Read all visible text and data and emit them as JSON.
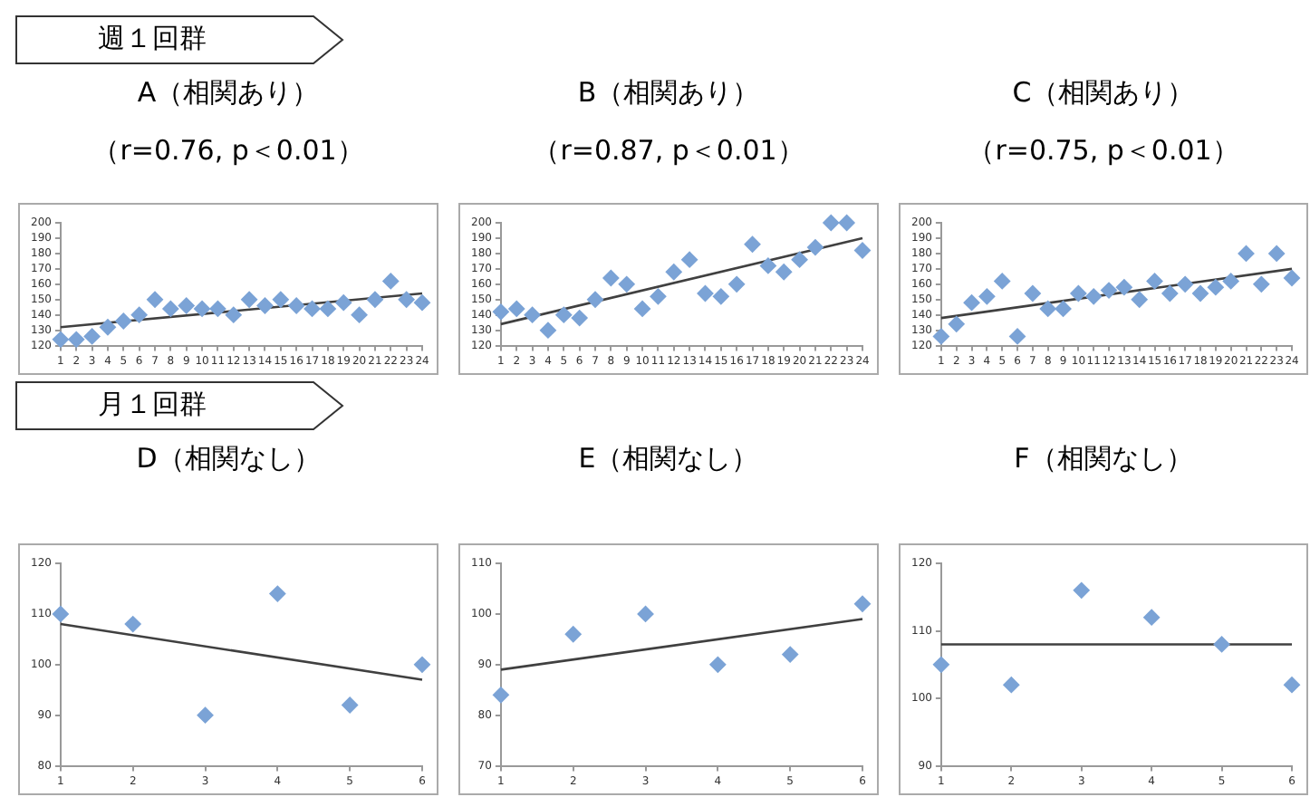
{
  "chart_data": [
    {
      "type": "scatter",
      "title": "A（相関あり）",
      "subtitle": "（r=0.76, p＜0.01）",
      "annotations": [
        "週１回群"
      ],
      "x": [
        1,
        2,
        3,
        4,
        5,
        6,
        7,
        8,
        9,
        10,
        11,
        12,
        13,
        14,
        15,
        16,
        17,
        18,
        19,
        20,
        21,
        22,
        23,
        24
      ],
      "series": [
        {
          "color": "#7ba3d6",
          "marker": "diamond",
          "values": [
            124,
            124,
            126,
            132,
            136,
            140,
            150,
            144,
            146,
            144,
            144,
            140,
            150,
            146,
            150,
            146,
            144,
            144,
            148,
            140,
            150,
            162,
            150,
            148
          ]
        },
        {
          "type": "line",
          "color": "#404040",
          "marker": "none",
          "x": [
            1,
            24
          ],
          "values": [
            132,
            154
          ]
        }
      ],
      "xlim": [
        1,
        24
      ],
      "xticks": [
        1,
        2,
        3,
        4,
        5,
        6,
        7,
        8,
        9,
        10,
        11,
        12,
        13,
        14,
        15,
        16,
        17,
        18,
        19,
        20,
        21,
        22,
        23,
        24
      ],
      "ylim": [
        120,
        200
      ],
      "yticks": [
        120,
        130,
        140,
        150,
        160,
        170,
        180,
        190,
        200
      ]
    },
    {
      "type": "scatter",
      "title": "B（相関あり）",
      "subtitle": "（r=0.87, p＜0.01）",
      "x": [
        1,
        2,
        3,
        4,
        5,
        6,
        7,
        8,
        9,
        10,
        11,
        12,
        13,
        14,
        15,
        16,
        17,
        18,
        19,
        20,
        21,
        22,
        23,
        24
      ],
      "series": [
        {
          "color": "#7ba3d6",
          "marker": "diamond",
          "values": [
            142,
            144,
            140,
            130,
            140,
            138,
            150,
            164,
            160,
            144,
            152,
            168,
            176,
            154,
            152,
            160,
            186,
            172,
            168,
            176,
            184,
            200,
            200,
            182
          ]
        },
        {
          "type": "line",
          "color": "#404040",
          "marker": "none",
          "x": [
            1,
            24
          ],
          "values": [
            134,
            190
          ]
        }
      ],
      "xlim": [
        1,
        24
      ],
      "xticks": [
        1,
        2,
        3,
        4,
        5,
        6,
        7,
        8,
        9,
        10,
        11,
        12,
        13,
        14,
        15,
        16,
        17,
        18,
        19,
        20,
        21,
        22,
        23,
        24
      ],
      "ylim": [
        120,
        200
      ],
      "yticks": [
        120,
        130,
        140,
        150,
        160,
        170,
        180,
        190,
        200
      ]
    },
    {
      "type": "scatter",
      "title": "C（相関あり）",
      "subtitle": "（r=0.75, p＜0.01）",
      "x": [
        1,
        2,
        3,
        4,
        5,
        6,
        7,
        8,
        9,
        10,
        11,
        12,
        13,
        14,
        15,
        16,
        17,
        18,
        19,
        20,
        21,
        22,
        23,
        24
      ],
      "series": [
        {
          "color": "#7ba3d6",
          "marker": "diamond",
          "values": [
            126,
            134,
            148,
            152,
            162,
            126,
            154,
            144,
            144,
            154,
            152,
            156,
            158,
            150,
            162,
            154,
            160,
            154,
            158,
            162,
            180,
            160,
            180,
            164
          ]
        },
        {
          "type": "line",
          "color": "#404040",
          "marker": "none",
          "x": [
            1,
            24
          ],
          "values": [
            138,
            170
          ]
        }
      ],
      "xlim": [
        1,
        24
      ],
      "xticks": [
        1,
        2,
        3,
        4,
        5,
        6,
        7,
        8,
        9,
        10,
        11,
        12,
        13,
        14,
        15,
        16,
        17,
        18,
        19,
        20,
        21,
        22,
        23,
        24
      ],
      "ylim": [
        120,
        200
      ],
      "yticks": [
        120,
        130,
        140,
        150,
        160,
        170,
        180,
        190,
        200
      ]
    },
    {
      "type": "scatter",
      "title": "D（相関なし）",
      "annotations": [
        "月１回群"
      ],
      "x": [
        1,
        2,
        3,
        4,
        5,
        6
      ],
      "series": [
        {
          "color": "#7ba3d6",
          "marker": "diamond",
          "values": [
            110,
            108,
            90,
            114,
            92,
            100
          ]
        },
        {
          "type": "line",
          "color": "#404040",
          "marker": "none",
          "x": [
            1,
            6
          ],
          "values": [
            108,
            97
          ]
        }
      ],
      "xlim": [
        1,
        6
      ],
      "xticks": [
        1,
        2,
        3,
        4,
        5,
        6
      ],
      "ylim": [
        80,
        120
      ],
      "yticks": [
        80,
        90,
        100,
        110,
        120
      ]
    },
    {
      "type": "scatter",
      "title": "E（相関なし）",
      "x": [
        1,
        2,
        3,
        4,
        5,
        6
      ],
      "series": [
        {
          "color": "#7ba3d6",
          "marker": "diamond",
          "values": [
            84,
            96,
            100,
            90,
            92,
            102
          ]
        },
        {
          "type": "line",
          "color": "#404040",
          "marker": "none",
          "x": [
            1,
            6
          ],
          "values": [
            89,
            99
          ]
        }
      ],
      "xlim": [
        1,
        6
      ],
      "xticks": [
        1,
        2,
        3,
        4,
        5,
        6
      ],
      "ylim": [
        70,
        110
      ],
      "yticks": [
        70,
        80,
        90,
        100,
        110
      ]
    },
    {
      "type": "scatter",
      "title": "F（相関なし）",
      "x": [
        1,
        2,
        3,
        4,
        5,
        6
      ],
      "series": [
        {
          "color": "#7ba3d6",
          "marker": "diamond",
          "values": [
            105,
            102,
            116,
            112,
            108,
            102
          ]
        },
        {
          "type": "line",
          "color": "#404040",
          "marker": "none",
          "x": [
            1,
            6
          ],
          "values": [
            108,
            108
          ]
        }
      ],
      "xlim": [
        1,
        6
      ],
      "xticks": [
        1,
        2,
        3,
        4,
        5,
        6
      ],
      "ylim": [
        90,
        120
      ],
      "yticks": [
        90,
        100,
        110,
        120
      ]
    }
  ]
}
